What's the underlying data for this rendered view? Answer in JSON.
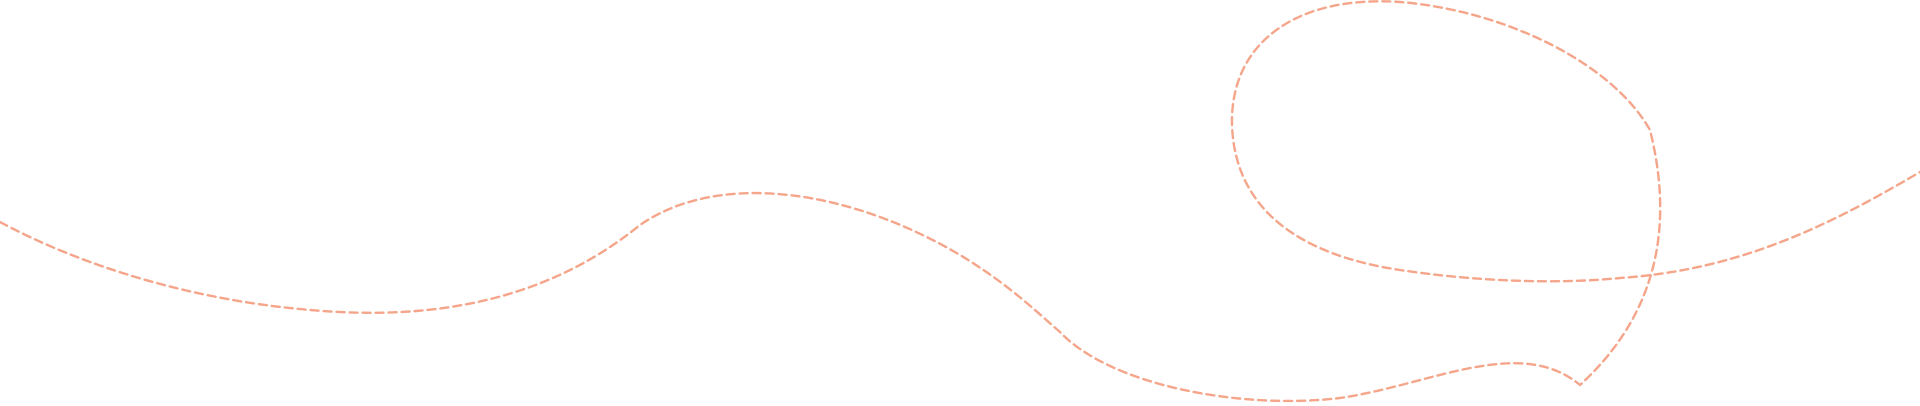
{
  "decoration": {
    "line_color": "#F4A58A",
    "line_style": "dashed"
  }
}
